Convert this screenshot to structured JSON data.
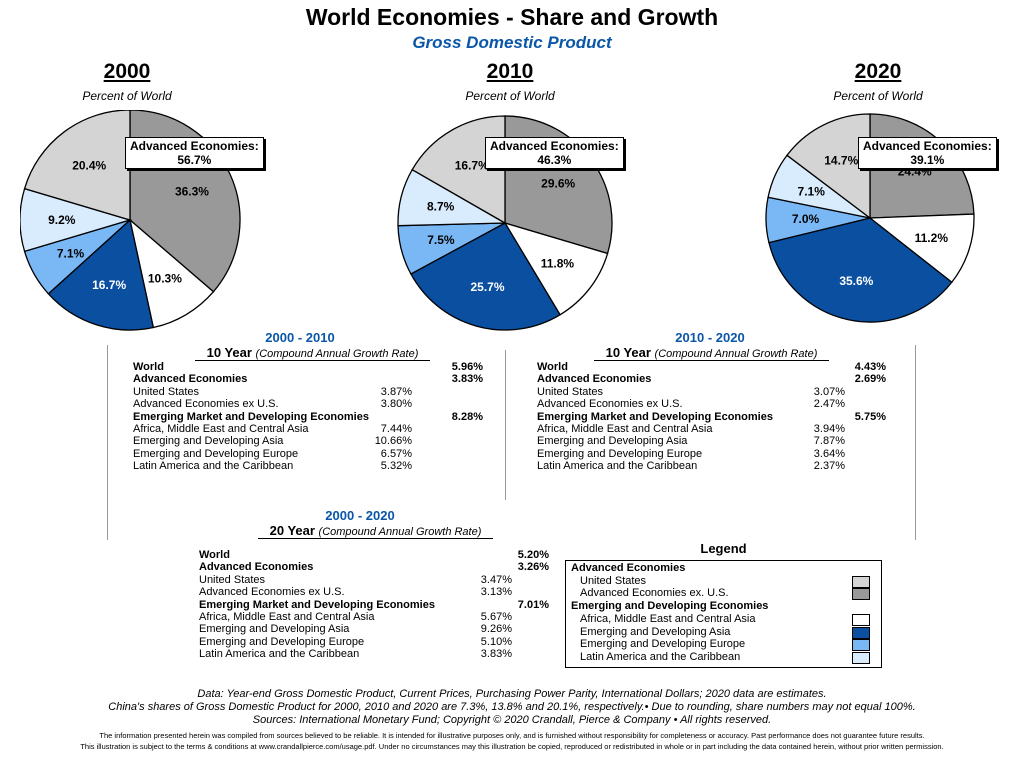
{
  "title": "World Economies - Share and Growth",
  "subtitle": "Gross Domestic Product",
  "colors": {
    "United States": "#d4d4d4",
    "Advanced Economies ex U.S.": "#999999",
    "Africa, Middle East and Central Asia": "#ffffff",
    "Emerging and Developing Asia": "#0a4fa0",
    "Emerging and Developing Europe": "#7ab8f5",
    "Latin America and the Caribbean": "#d9ecfd"
  },
  "chart_data": [
    {
      "type": "pie",
      "year": "2000",
      "subtitle": "Percent of World",
      "callout_label": "Advanced Economies:",
      "callout_value": "56.7%",
      "slices": [
        {
          "name": "Advanced Economies ex U.S.",
          "value": 36.3,
          "label": "36.3%"
        },
        {
          "name": "Africa, Middle East and Central Asia",
          "value": 10.3,
          "label": "10.3%"
        },
        {
          "name": "Emerging and Developing Asia",
          "value": 16.7,
          "label": "16.7%"
        },
        {
          "name": "Emerging and Developing Europe",
          "value": 7.1,
          "label": "7.1%"
        },
        {
          "name": "Latin America and the Caribbean",
          "value": 9.2,
          "label": "9.2%"
        },
        {
          "name": "United States",
          "value": 20.4,
          "label": "20.4%"
        }
      ]
    },
    {
      "type": "pie",
      "year": "2010",
      "subtitle": "Percent of World",
      "callout_label": "Advanced Economies:",
      "callout_value": "46.3%",
      "slices": [
        {
          "name": "Advanced Economies ex U.S.",
          "value": 29.6,
          "label": "29.6%"
        },
        {
          "name": "Africa, Middle East and Central Asia",
          "value": 11.8,
          "label": "11.8%"
        },
        {
          "name": "Emerging and Developing Asia",
          "value": 25.7,
          "label": "25.7%"
        },
        {
          "name": "Emerging and Developing Europe",
          "value": 7.5,
          "label": "7.5%"
        },
        {
          "name": "Latin America and the Caribbean",
          "value": 8.7,
          "label": "8.7%"
        },
        {
          "name": "United States",
          "value": 16.7,
          "label": "16.7%"
        }
      ]
    },
    {
      "type": "pie",
      "year": "2020",
      "subtitle": "Percent of World",
      "callout_label": "Advanced Economies:",
      "callout_value": "39.1%",
      "slices": [
        {
          "name": "Advanced Economies ex U.S.",
          "value": 24.4,
          "label": "24.4%"
        },
        {
          "name": "Africa, Middle East and Central Asia",
          "value": 11.2,
          "label": "11.2%"
        },
        {
          "name": "Emerging and Developing Asia",
          "value": 35.6,
          "label": "35.6%"
        },
        {
          "name": "Emerging and Developing Europe",
          "value": 7.0,
          "label": "7.0%"
        },
        {
          "name": "Latin America and the Caribbean",
          "value": 7.1,
          "label": "7.1%"
        },
        {
          "name": "United States",
          "value": 14.7,
          "label": "14.7%"
        }
      ]
    }
  ],
  "growth": {
    "p1": {
      "period": "2000 - 2010",
      "head_bold": "10 Year",
      "head_italic": "(Compound Annual Growth Rate)",
      "rows": [
        {
          "label": "World",
          "value": "5.96%",
          "bold": true
        },
        {
          "label": "Advanced Economies",
          "value": "3.83%",
          "bold": true
        },
        {
          "label": "United States",
          "value": "3.87%",
          "bold": false
        },
        {
          "label": "Advanced Economies ex U.S.",
          "value": "3.80%",
          "bold": false
        },
        {
          "label": "Emerging Market and Developing Economies",
          "value": "8.28%",
          "bold": true
        },
        {
          "label": "Africa, Middle East and Central Asia",
          "value": "7.44%",
          "bold": false
        },
        {
          "label": "Emerging and Developing Asia",
          "value": "10.66%",
          "bold": false
        },
        {
          "label": "Emerging and Developing Europe",
          "value": "6.57%",
          "bold": false
        },
        {
          "label": "Latin America and the Caribbean",
          "value": "5.32%",
          "bold": false
        }
      ]
    },
    "p2": {
      "period": "2010 - 2020",
      "head_bold": "10 Year",
      "head_italic": "(Compound Annual Growth Rate)",
      "rows": [
        {
          "label": "World",
          "value": "4.43%",
          "bold": true
        },
        {
          "label": "Advanced Economies",
          "value": "2.69%",
          "bold": true
        },
        {
          "label": "United States",
          "value": "3.07%",
          "bold": false
        },
        {
          "label": "Advanced Economies ex U.S.",
          "value": "2.47%",
          "bold": false
        },
        {
          "label": "Emerging Market and Developing Economies",
          "value": "5.75%",
          "bold": true
        },
        {
          "label": "Africa, Middle East and Central Asia",
          "value": "3.94%",
          "bold": false
        },
        {
          "label": "Emerging and Developing Asia",
          "value": "7.87%",
          "bold": false
        },
        {
          "label": "Emerging and Developing Europe",
          "value": "3.64%",
          "bold": false
        },
        {
          "label": "Latin America and the Caribbean",
          "value": "2.37%",
          "bold": false
        }
      ]
    },
    "p3": {
      "period": "2000 - 2020",
      "head_bold": "20 Year",
      "head_italic": "(Compound Annual Growth Rate)",
      "rows": [
        {
          "label": "World",
          "value": "5.20%",
          "bold": true
        },
        {
          "label": "Advanced Economies",
          "value": "3.26%",
          "bold": true
        },
        {
          "label": "United States",
          "value": "3.47%",
          "bold": false
        },
        {
          "label": "Advanced Economies ex U.S.",
          "value": "3.13%",
          "bold": false
        },
        {
          "label": "Emerging Market and Developing Economies",
          "value": "7.01%",
          "bold": true
        },
        {
          "label": "Africa, Middle East and Central Asia",
          "value": "5.67%",
          "bold": false
        },
        {
          "label": "Emerging and Developing Asia",
          "value": "9.26%",
          "bold": false
        },
        {
          "label": "Emerging and Developing Europe",
          "value": "5.10%",
          "bold": false
        },
        {
          "label": "Latin America and the Caribbean",
          "value": "3.83%",
          "bold": false
        }
      ]
    }
  },
  "legend": {
    "title": "Legend",
    "rows": [
      {
        "label": "Advanced Economies",
        "bold": true,
        "swatch": ""
      },
      {
        "label": "United States",
        "bold": false,
        "swatch": "United States"
      },
      {
        "label": "Advanced Economies ex. U.S.",
        "bold": false,
        "swatch": "Advanced Economies ex U.S."
      },
      {
        "label": "Emerging and Developing Economies",
        "bold": true,
        "swatch": ""
      },
      {
        "label": "Africa, Middle East and Central Asia",
        "bold": false,
        "swatch": "Africa, Middle East and Central Asia"
      },
      {
        "label": "Emerging and Developing Asia",
        "bold": false,
        "swatch": "Emerging and Developing Asia"
      },
      {
        "label": "Emerging and Developing Europe",
        "bold": false,
        "swatch": "Emerging and Developing Europe"
      },
      {
        "label": "Latin America and the Caribbean",
        "bold": false,
        "swatch": "Latin America and the Caribbean"
      }
    ]
  },
  "footnotes": {
    "line1": "Data: Year-end Gross Domestic Product, Current Prices, Purchasing Power Parity, International Dollars; 2020 data are estimates.",
    "line2": "China's shares of Gross Domestic Product for 2000, 2010 and 2020 are 7.3%, 13.8% and 20.1%, respectively.• Due to rounding, share numbers may not equal 100%.",
    "line3": "Sources: International Monetary Fund; Copyright © 2020 Crandall, Pierce & Company • All rights reserved.",
    "fine1": "The information presented herein was compiled from sources believed to be reliable. It is intended for illustrative purposes only, and is furnished without responsibility for completeness or accuracy. Past performance does not guarantee future results.",
    "fine2": "This illustration is subject to the terms & conditions at www.crandallpierce.com/usage.pdf. Under no circumstances may this illustration be copied, reproduced or redistributed in whole or in part including the data contained herein, without prior written permission."
  }
}
